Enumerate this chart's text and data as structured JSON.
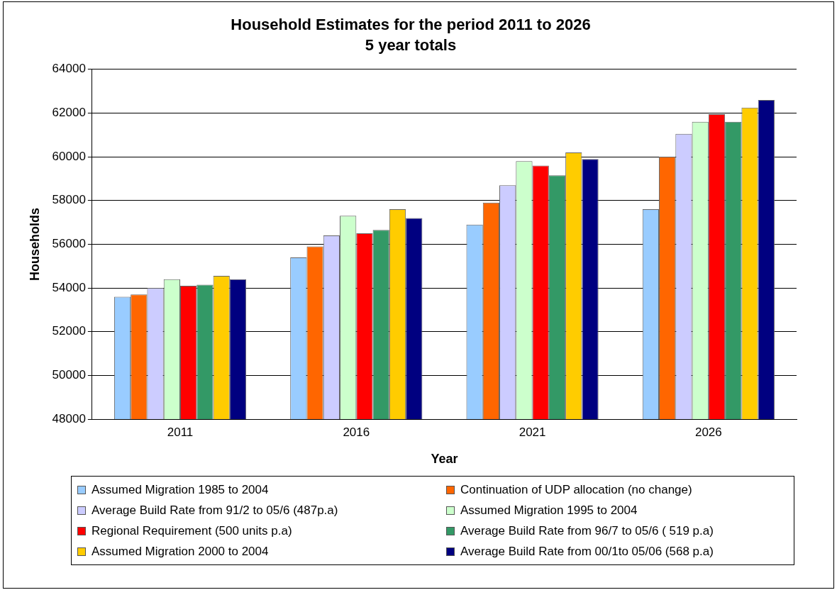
{
  "chart_data": {
    "type": "bar",
    "title": "Household Estimates for the period 2011 to 2026",
    "subtitle": "5 year totals",
    "xlabel": "Year",
    "ylabel": "Households",
    "categories": [
      "2011",
      "2016",
      "2021",
      "2026"
    ],
    "series": [
      {
        "name": "Assumed Migration 1985 to 2004",
        "color": "#99ccff",
        "values": [
          53600,
          55400,
          56900,
          57600
        ]
      },
      {
        "name": "Continuation of UDP allocation (no change)",
        "color": "#ff6600",
        "values": [
          53700,
          55900,
          57900,
          60000
        ]
      },
      {
        "name": "Average Build Rate from 91/2 to 05/6 (487p.a)",
        "color": "#ccccff",
        "values": [
          54000,
          56400,
          58700,
          61050
        ]
      },
      {
        "name": "Assumed Migration 1995 to 2004",
        "color": "#ccffcc",
        "values": [
          54400,
          57300,
          59800,
          61600
        ]
      },
      {
        "name": "Regional Requirement (500 units p.a)",
        "color": "#ff0000",
        "values": [
          54100,
          56500,
          59600,
          61950
        ]
      },
      {
        "name": "Average Build Rate from 96/7 to 05/6 ( 519 p.a)",
        "color": "#339966",
        "values": [
          54150,
          56650,
          59150,
          61600
        ]
      },
      {
        "name": "Assumed Migration 2000 to 2004",
        "color": "#ffcc00",
        "values": [
          54550,
          57600,
          60200,
          62250
        ]
      },
      {
        "name": "Average Build Rate from 00/1to 05/06 (568 p.a)",
        "color": "#000080",
        "values": [
          54400,
          57200,
          59900,
          62600
        ]
      }
    ],
    "ylim": [
      48000,
      64000
    ],
    "yticks": [
      48000,
      50000,
      52000,
      54000,
      56000,
      58000,
      60000,
      62000,
      64000
    ],
    "grid": "y",
    "legend": "bottom"
  }
}
